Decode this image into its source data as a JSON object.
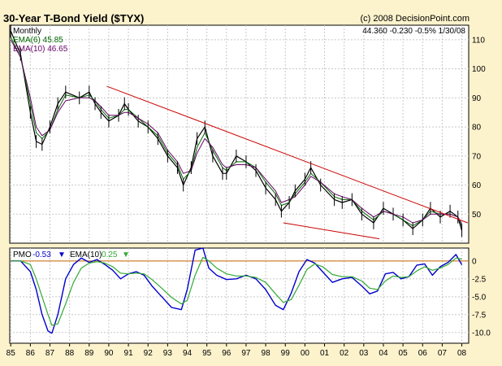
{
  "header": {
    "title": "30-Year T-Bond Yield ($TYX)",
    "copyright": "(c) 2008 DecisionPoint.com"
  },
  "top_panel": {
    "period": "Monthly",
    "ema6_label": "EMA(6) 45.85",
    "ema10_label": "EMA(10) 46.65",
    "quote": "44.360  -0.230  -0.5%  1/30/08",
    "colors": {
      "price": "#000000",
      "ema6": "#006600",
      "ema10": "#660066",
      "trendline": "#CC0000"
    }
  },
  "bottom_panel": {
    "pmo_label": "PMO",
    "pmo_value": "-0.53",
    "ema_label": "EMA(10)",
    "ema_value": "0.25",
    "colors": {
      "pmo": "#0000CC",
      "ema": "#33AA33",
      "zero": "#CC6600"
    }
  },
  "chart_data": [
    {
      "type": "line",
      "x": [
        1985.0,
        1985.5,
        1986.0,
        1986.3,
        1986.6,
        1987.0,
        1987.4,
        1987.8,
        1988.5,
        1989.0,
        1989.3,
        1989.6,
        1990.0,
        1990.5,
        1990.8,
        1991.0,
        1991.5,
        1992.0,
        1992.5,
        1993.0,
        1993.5,
        1993.8,
        1994.2,
        1994.5,
        1994.9,
        1995.3,
        1995.8,
        1996.0,
        1996.5,
        1997.0,
        1997.5,
        1998.0,
        1998.5,
        1998.8,
        1999.2,
        1999.5,
        2000.0,
        2000.3,
        2000.8,
        2001.5,
        2001.9,
        2002.4,
        2002.9,
        2003.5,
        2004.0,
        2004.5,
        2005.0,
        2005.5,
        2006.0,
        2006.4,
        2006.9,
        2007.4,
        2007.8,
        2008.0
      ],
      "series": [
        {
          "name": "$TYX",
          "values": [
            113,
            105,
            85,
            75,
            74,
            80,
            88,
            92,
            90,
            92,
            88,
            85,
            82,
            84,
            88,
            86,
            82,
            80,
            76,
            70,
            66,
            60,
            66,
            76,
            80,
            70,
            64,
            64,
            70,
            68,
            65,
            59,
            55,
            51,
            54,
            58,
            62,
            66,
            60,
            55,
            54,
            55,
            50,
            47,
            52,
            50,
            48,
            45,
            48,
            52,
            49,
            51,
            49,
            44.36
          ]
        },
        {
          "name": "EMA(6)",
          "values": [
            111,
            104,
            88,
            78,
            76,
            79,
            86,
            91,
            90,
            91,
            89,
            86,
            83,
            84,
            86,
            86,
            83,
            80,
            77,
            71,
            67,
            62,
            65,
            73,
            78,
            72,
            66,
            65,
            68,
            68,
            66,
            61,
            57,
            53,
            54,
            57,
            61,
            64,
            61,
            56,
            55,
            55,
            51,
            48,
            51,
            50,
            48,
            46,
            48,
            51,
            50,
            50,
            49,
            45.85
          ]
        },
        {
          "name": "EMA(10)",
          "values": [
            110,
            104,
            90,
            80,
            77,
            79,
            85,
            89,
            90,
            90,
            89,
            87,
            84,
            84,
            85,
            85,
            83,
            81,
            78,
            72,
            68,
            64,
            65,
            71,
            76,
            73,
            67,
            66,
            67,
            67,
            66,
            62,
            58,
            54,
            55,
            56,
            60,
            63,
            61,
            57,
            56,
            55,
            52,
            49,
            51,
            50,
            49,
            47,
            48,
            50,
            50,
            50,
            49,
            46.65
          ]
        }
      ],
      "ylim": [
        40,
        115
      ],
      "yticks": [
        "110",
        "100",
        "90",
        "80",
        "70",
        "60",
        "50"
      ],
      "trendlines": [
        {
          "from": [
            1989.9,
            94
          ],
          "to": [
            2008.3,
            47
          ]
        },
        {
          "from": [
            1998.9,
            47
          ],
          "to": [
            2003.8,
            41.5
          ]
        }
      ]
    },
    {
      "type": "line",
      "x": [
        1985.0,
        1985.5,
        1986.0,
        1986.3,
        1986.6,
        1986.9,
        1987.1,
        1987.4,
        1987.8,
        1988.2,
        1988.6,
        1989.0,
        1989.4,
        1989.8,
        1990.2,
        1990.6,
        1991.0,
        1991.4,
        1991.8,
        1992.2,
        1992.7,
        1993.2,
        1993.7,
        1994.0,
        1994.4,
        1994.8,
        1995.1,
        1995.5,
        1996.0,
        1996.5,
        1997.0,
        1997.5,
        1998.0,
        1998.5,
        1998.9,
        1999.3,
        1999.7,
        2000.1,
        2000.5,
        2000.9,
        2001.4,
        2001.9,
        2002.4,
        2002.9,
        2003.3,
        2003.7,
        2004.1,
        2004.5,
        2004.9,
        2005.3,
        2005.7,
        2006.1,
        2006.5,
        2006.9,
        2007.3,
        2007.7,
        2008.0
      ],
      "series": [
        {
          "name": "PMO",
          "values": [
            0,
            0,
            -1.5,
            -4,
            -7.5,
            -9.8,
            -10.1,
            -7.5,
            -2.5,
            -0.5,
            0.4,
            -0.2,
            0.2,
            -0.5,
            -1.3,
            -2.5,
            -1.8,
            -1.5,
            -2,
            -3.5,
            -5,
            -6.5,
            -6.8,
            -4,
            1.5,
            1.8,
            -1,
            -2,
            -2.6,
            -2.5,
            -2,
            -2.5,
            -4,
            -6.2,
            -6.8,
            -4.5,
            -1.5,
            0.2,
            -0.3,
            -1.5,
            -3,
            -2.5,
            -2.3,
            -3.5,
            -4.6,
            -4.2,
            -1.8,
            -1.6,
            -2.5,
            -2.2,
            -0.6,
            -0.4,
            -2,
            -0.8,
            -0.2,
            0.9,
            -0.53
          ]
        },
        {
          "name": "EMA(10)",
          "values": [
            0,
            0,
            -0.5,
            -2.5,
            -5,
            -7.5,
            -9,
            -8.8,
            -6,
            -3,
            -1,
            -0.3,
            -0.1,
            -0.3,
            -0.8,
            -1.7,
            -1.8,
            -1.7,
            -1.8,
            -2.6,
            -3.8,
            -5.1,
            -6,
            -5.5,
            -2,
            0.5,
            0,
            -1,
            -1.8,
            -2.1,
            -2.1,
            -2.3,
            -3,
            -4.6,
            -5.8,
            -5.4,
            -3.4,
            -1.2,
            -0.4,
            -0.8,
            -1.9,
            -2.2,
            -2.2,
            -2.8,
            -3.8,
            -4,
            -2.8,
            -2.1,
            -2.3,
            -2.2,
            -1.4,
            -0.8,
            -1.3,
            -1,
            -0.5,
            0.4,
            0.25
          ]
        }
      ],
      "ylim": [
        -11.5,
        1.8
      ],
      "yticks": [
        "0",
        "-2.5",
        "-5.0",
        "-7.5",
        "-10.0"
      ],
      "zero_line": 0
    }
  ],
  "x_axis": {
    "xlim": [
      1984.95,
      2008.35
    ],
    "tick_labels": [
      "85",
      "86",
      "87",
      "88",
      "89",
      "90",
      "91",
      "92",
      "93",
      "94",
      "95",
      "96",
      "97",
      "98",
      "99",
      "00",
      "01",
      "02",
      "03",
      "04",
      "05",
      "06",
      "07",
      "08"
    ]
  }
}
